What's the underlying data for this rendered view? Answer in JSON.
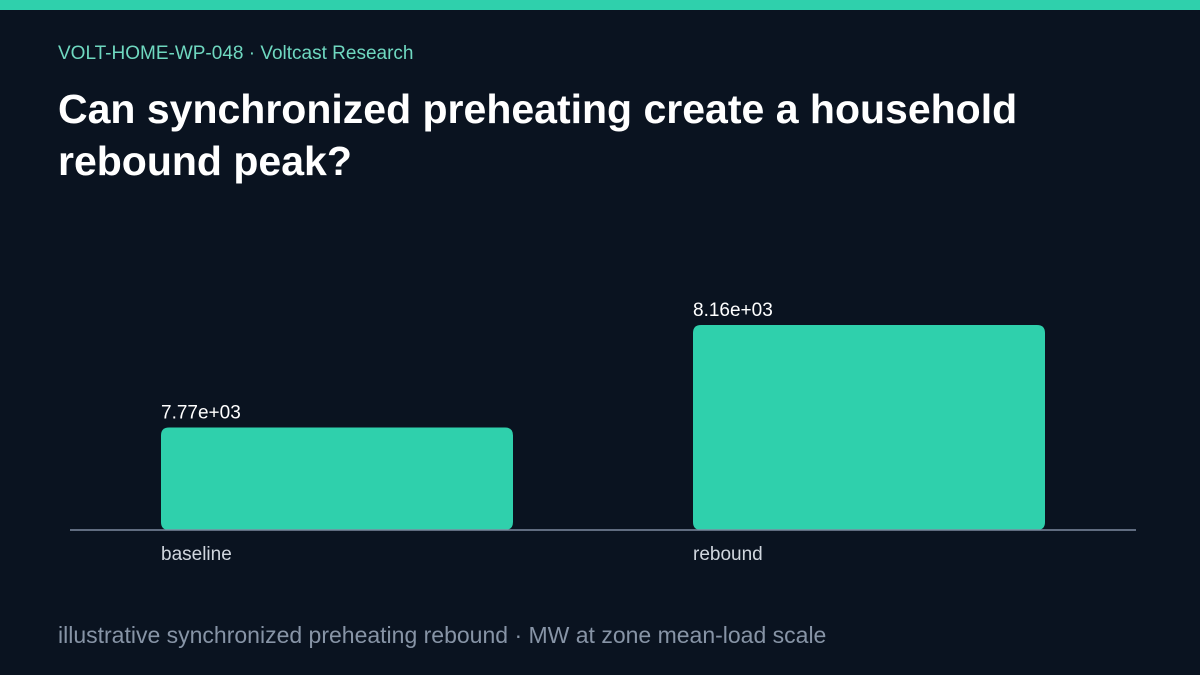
{
  "header": {
    "eyebrow": "VOLT-HOME-WP-048 · Voltcast Research",
    "title": "Can synchronized preheating create a household rebound peak?"
  },
  "footnote": "illustrative synchronized preheating rebound · MW at zone mean-load scale",
  "colors": {
    "background": "#0a1320",
    "accent": "#2fd0ac",
    "eyebrow": "#6fd8c0",
    "axis": "#7d8aa0",
    "label": "#d0d6de",
    "value_label": "#ffffff"
  },
  "chart_data": {
    "type": "bar",
    "categories": [
      "baseline",
      "rebound"
    ],
    "values": [
      7770,
      8160
    ],
    "value_labels": [
      "7.77e+03",
      "8.16e+03"
    ],
    "title": "",
    "xlabel": "",
    "ylabel": "",
    "ylim": [
      0,
      8160
    ],
    "grid": false,
    "legend": "none"
  }
}
